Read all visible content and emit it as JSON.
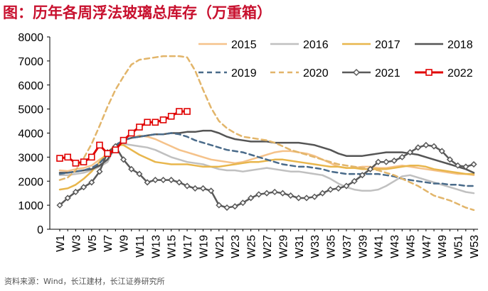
{
  "chart_data": {
    "type": "line",
    "title": "图：历年各周浮法玻璃总库存（万重箱）",
    "source": "资料来源：Wind，长江建材，长江证券研究所",
    "xlabel": "",
    "ylabel": "",
    "ylim": [
      0,
      8000
    ],
    "yticks": [
      0,
      1000,
      2000,
      3000,
      4000,
      5000,
      6000,
      7000,
      8000
    ],
    "x_tick_labels": [
      "W1",
      "W3",
      "W5",
      "W7",
      "W9",
      "W11",
      "W13",
      "W15",
      "W17",
      "W19",
      "W21",
      "W23",
      "W25",
      "W27",
      "W29",
      "W31",
      "W33",
      "W35",
      "W37",
      "W39",
      "W41",
      "W43",
      "W45",
      "W47",
      "W49",
      "W51",
      "W53"
    ],
    "grid": false,
    "legend_position": "top-right",
    "series": [
      {
        "name": "2015",
        "color": "#F5C28A",
        "style": "solid",
        "marker": "none",
        "values": [
          2450,
          2420,
          2500,
          2550,
          2650,
          2900,
          3100,
          3500,
          3700,
          3800,
          3900,
          3850,
          3750,
          3600,
          3450,
          3300,
          3200,
          3100,
          3000,
          2900,
          2850,
          2800,
          2750,
          2800,
          2900,
          3000,
          3100,
          3200,
          3250,
          3250,
          3200,
          3150,
          3050,
          2900,
          2750,
          2600,
          2550,
          2550,
          2600,
          2600,
          2550,
          2550,
          2600,
          2650,
          2600,
          2550,
          2500,
          2450,
          2400,
          2350,
          2300,
          2300,
          2250
        ]
      },
      {
        "name": "2016",
        "color": "#C0C0C0",
        "style": "solid",
        "marker": "none",
        "values": [
          2250,
          2250,
          2300,
          2350,
          2450,
          2600,
          2800,
          3450,
          3550,
          3500,
          3450,
          3400,
          3300,
          3150,
          3000,
          2900,
          2800,
          2750,
          2700,
          2600,
          2500,
          2450,
          2450,
          2400,
          2450,
          2500,
          2550,
          2500,
          2450,
          2400,
          2400,
          2350,
          2300,
          2250,
          2100,
          1900,
          1750,
          1650,
          1600,
          1600,
          1650,
          1800,
          2000,
          2200,
          2250,
          2150,
          2050,
          1950,
          1850,
          1750,
          1650,
          1550,
          1500
        ]
      },
      {
        "name": "2017",
        "color": "#E8B64C",
        "style": "solid",
        "marker": "none",
        "values": [
          1650,
          1700,
          1850,
          2100,
          2400,
          2800,
          3200,
          3500,
          3500,
          3300,
          3100,
          2950,
          2800,
          2750,
          2700,
          2700,
          2700,
          2650,
          2600,
          2600,
          2600,
          2650,
          2700,
          2750,
          2800,
          2800,
          2850,
          2900,
          2900,
          2850,
          2800,
          2750,
          2700,
          2650,
          2600,
          2600,
          2550,
          2550,
          2500,
          2500,
          2500,
          2500,
          2550,
          2600,
          2650,
          2650,
          2600,
          2500,
          2450,
          2400,
          2350,
          2300,
          2300
        ]
      },
      {
        "name": "2018",
        "color": "#555555",
        "style": "solid",
        "marker": "none",
        "values": [
          2350,
          2350,
          2400,
          2450,
          2500,
          2650,
          2900,
          3450,
          3700,
          3800,
          3850,
          3900,
          3950,
          3950,
          4000,
          4000,
          4050,
          4050,
          4100,
          4100,
          4000,
          3850,
          3750,
          3700,
          3650,
          3650,
          3650,
          3600,
          3600,
          3600,
          3600,
          3550,
          3500,
          3400,
          3300,
          3150,
          3050,
          3050,
          3050,
          3100,
          3150,
          3200,
          3200,
          3200,
          3150,
          3100,
          3000,
          2900,
          2800,
          2700,
          2600,
          2500,
          2350
        ]
      },
      {
        "name": "2019",
        "color": "#4A6B8A",
        "style": "dashed",
        "marker": "none",
        "values": [
          2300,
          2350,
          2400,
          2450,
          2550,
          2750,
          3100,
          3500,
          3700,
          3800,
          3850,
          3900,
          3950,
          3950,
          4000,
          3950,
          3850,
          3700,
          3600,
          3500,
          3400,
          3300,
          3250,
          3200,
          3100,
          3000,
          2900,
          2800,
          2700,
          2650,
          2600,
          2600,
          2550,
          2500,
          2400,
          2350,
          2300,
          2300,
          2300,
          2300,
          2300,
          2250,
          2200,
          2100,
          2050,
          2000,
          1950,
          1900,
          1900,
          1850,
          1850,
          1800,
          1800
        ]
      },
      {
        "name": "2020",
        "color": "#E2B56A",
        "style": "dashed",
        "marker": "none",
        "values": [
          2050,
          2150,
          2450,
          2950,
          3550,
          4300,
          5100,
          5800,
          6350,
          6850,
          7050,
          7100,
          7150,
          7200,
          7200,
          7200,
          7150,
          6600,
          5800,
          5050,
          4500,
          4200,
          4000,
          3850,
          3800,
          3750,
          3700,
          3600,
          3450,
          3300,
          3200,
          3100,
          3000,
          2900,
          2800,
          2700,
          2650,
          2600,
          2550,
          2500,
          2450,
          2350,
          2250,
          2100,
          1950,
          1800,
          1600,
          1400,
          1300,
          1200,
          1050,
          900,
          800
        ]
      },
      {
        "name": "2021",
        "color": "#595959",
        "style": "solid",
        "marker": "diamond",
        "values": [
          1000,
          1300,
          1550,
          1750,
          1950,
          2400,
          3200,
          3450,
          2900,
          2500,
          2300,
          1950,
          2050,
          2050,
          2050,
          1950,
          1800,
          1700,
          1700,
          1600,
          1000,
          900,
          950,
          1100,
          1300,
          1450,
          1500,
          1550,
          1500,
          1400,
          1300,
          1300,
          1350,
          1500,
          1650,
          1700,
          1800,
          2000,
          2250,
          2500,
          2800,
          2800,
          2850,
          3000,
          3200,
          3400,
          3500,
          3450,
          3250,
          2900,
          2650,
          2600,
          2700
        ]
      },
      {
        "name": "2022",
        "color": "#E00000",
        "style": "solid",
        "marker": "square",
        "values": [
          2950,
          3000,
          2750,
          2800,
          3000,
          3500,
          3150,
          3300,
          3700,
          4000,
          4250,
          4450,
          4450,
          4550,
          4700,
          4900,
          4900
        ]
      }
    ]
  }
}
